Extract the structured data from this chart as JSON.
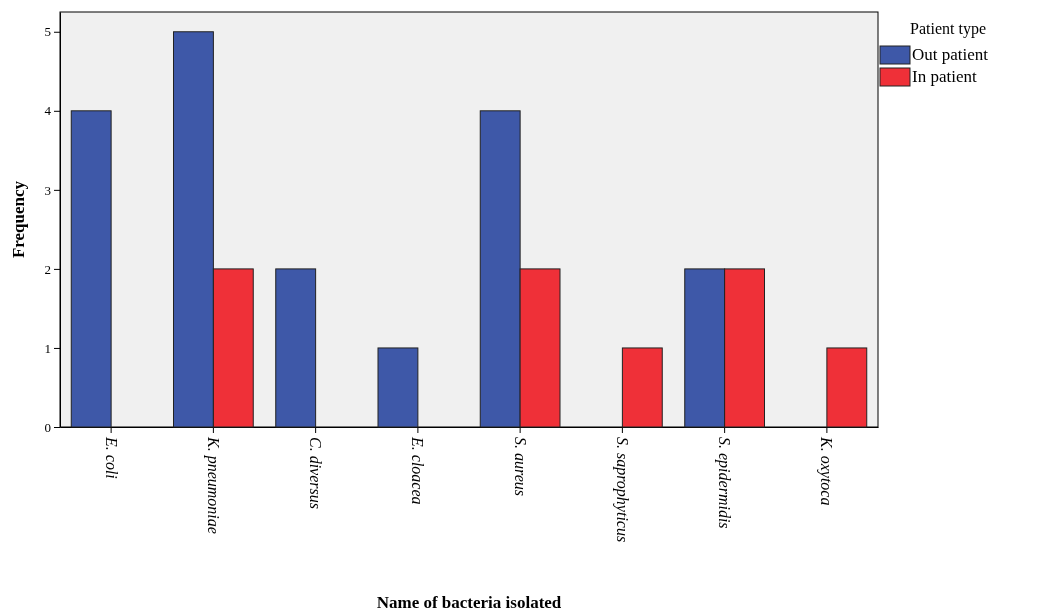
{
  "chart_data": {
    "type": "bar",
    "xlabel": "Name of bacteria isolated",
    "ylabel": "Frequency",
    "legend_title": "Patient type",
    "categories": [
      "E. coli",
      "K. pneumoniae",
      "C. diversus",
      "E. cloacea",
      "S. aureus",
      "S. saprophyticus",
      "S. epidermidis",
      "K. oxytoca"
    ],
    "series": [
      {
        "name": "Out patient",
        "color": "#3e58a8",
        "values": [
          4,
          5,
          2,
          1,
          4,
          null,
          2,
          null
        ]
      },
      {
        "name": "In patient",
        "color": "#ef3038",
        "values": [
          null,
          2,
          null,
          null,
          2,
          1,
          2,
          1
        ]
      }
    ],
    "ylim": [
      0,
      5.25
    ],
    "yticks": [
      0,
      1,
      2,
      3,
      4,
      5
    ],
    "grid": false,
    "legend": "top right"
  }
}
